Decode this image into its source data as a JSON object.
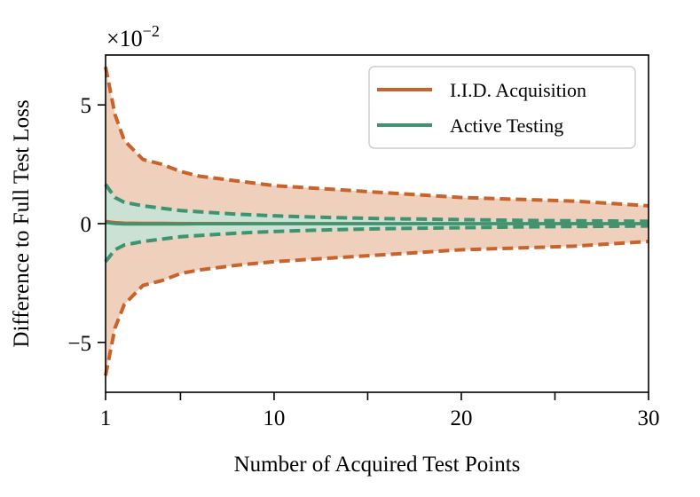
{
  "chart_data": {
    "type": "line",
    "xlabel": "Number of Acquired Test Points",
    "ylabel": "Difference to Full Test Loss",
    "y_scale_label": "×10",
    "y_scale_exponent": "−2",
    "xlim": [
      1,
      30
    ],
    "ylim": [
      -7.1,
      7.1
    ],
    "x_ticks": [
      1,
      10,
      20,
      30
    ],
    "x_minor_ticks": [
      5,
      15,
      25
    ],
    "y_ticks": [
      {
        "value": 5,
        "label": "5"
      },
      {
        "value": 0,
        "label": "0"
      },
      {
        "value": -5,
        "label": "−5"
      }
    ],
    "legend_position": "top-right",
    "grid": false,
    "x": [
      1,
      1.5,
      2,
      3,
      4,
      5,
      6,
      7,
      8,
      10,
      12,
      14,
      16,
      18,
      20,
      22,
      24,
      26,
      28,
      30
    ],
    "series": [
      {
        "name": "I.I.D. Acquisition",
        "color": "#c8632b",
        "band_color": "#eecdb9",
        "mean": [
          0.1,
          0.05,
          0.03,
          0.02,
          0.02,
          0.01,
          0.01,
          0.01,
          0.01,
          0.0,
          0.0,
          0.0,
          0.0,
          0.0,
          0.0,
          0.0,
          0.0,
          0.0,
          0.0,
          0.0
        ],
        "upper": [
          6.6,
          4.6,
          3.5,
          2.7,
          2.5,
          2.2,
          2.0,
          1.9,
          1.8,
          1.6,
          1.5,
          1.4,
          1.3,
          1.2,
          1.1,
          1.05,
          1.0,
          0.95,
          0.85,
          0.75
        ],
        "lower": [
          -6.4,
          -4.4,
          -3.4,
          -2.6,
          -2.4,
          -2.1,
          -1.95,
          -1.85,
          -1.75,
          -1.6,
          -1.5,
          -1.4,
          -1.3,
          -1.2,
          -1.1,
          -1.05,
          -1.0,
          -0.95,
          -0.85,
          -0.75
        ]
      },
      {
        "name": "Active Testing",
        "color": "#3e9470",
        "band_color": "#c7e2d5",
        "mean": [
          0.05,
          0.0,
          -0.02,
          -0.02,
          -0.02,
          -0.02,
          -0.01,
          -0.01,
          -0.01,
          0.0,
          0.0,
          0.0,
          0.0,
          0.0,
          0.0,
          0.0,
          0.0,
          0.0,
          0.0,
          0.0
        ],
        "upper": [
          1.65,
          1.1,
          0.9,
          0.75,
          0.65,
          0.55,
          0.5,
          0.45,
          0.4,
          0.33,
          0.28,
          0.24,
          0.21,
          0.19,
          0.17,
          0.15,
          0.13,
          0.12,
          0.11,
          0.1
        ],
        "lower": [
          -1.6,
          -1.1,
          -0.9,
          -0.75,
          -0.65,
          -0.55,
          -0.5,
          -0.45,
          -0.4,
          -0.33,
          -0.28,
          -0.24,
          -0.21,
          -0.19,
          -0.17,
          -0.15,
          -0.13,
          -0.12,
          -0.11,
          -0.1
        ]
      }
    ]
  }
}
